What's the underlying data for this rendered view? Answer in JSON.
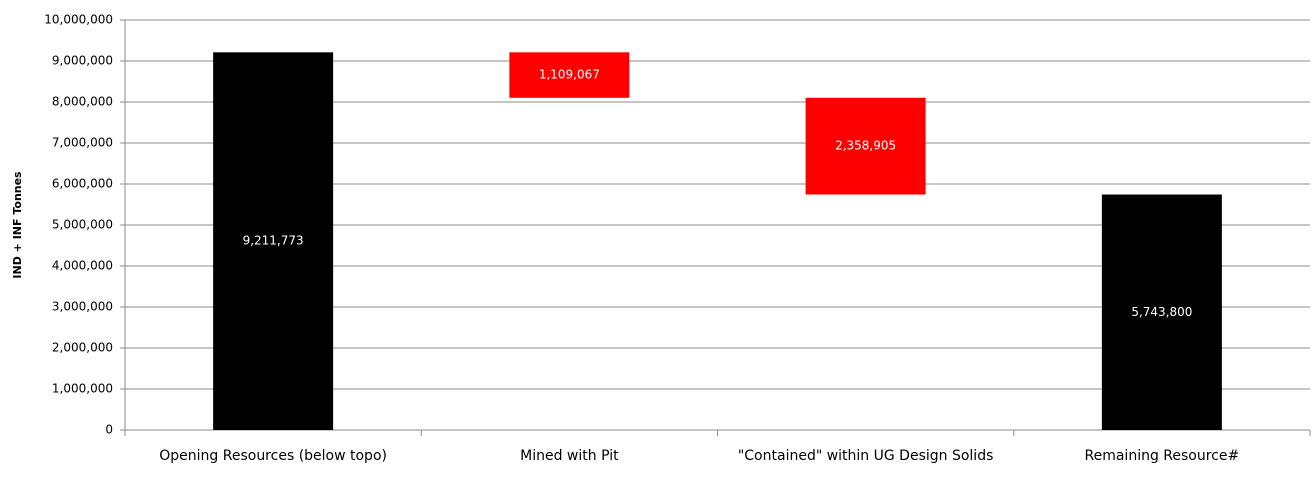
{
  "chart_data": {
    "type": "waterfall",
    "y_label": "IND + INF Tonnes",
    "categories": [
      "Opening Resources (below topo)",
      "Mined with Pit",
      "\"Contained\" within UG Design Solids",
      "Remaining Resource#"
    ],
    "measure": [
      "absolute",
      "relative",
      "relative",
      "total"
    ],
    "values": [
      9211773,
      -1109067,
      -2358905,
      5743800
    ],
    "value_labels": [
      "9,211,773",
      "1,109,067",
      "2,358,905",
      "5,743,800"
    ],
    "colors": [
      "#000000",
      "#ff0000",
      "#ff0000",
      "#000000"
    ],
    "ylim": [
      0,
      10000000
    ],
    "yticks": [
      0,
      {
        "value": 1000000,
        "label": "1,000,000"
      },
      {
        "value": 2000000,
        "label": "2,000,000"
      },
      {
        "value": 3000000,
        "label": "3,000,000"
      },
      {
        "value": 4000000,
        "label": "4,000,000"
      },
      {
        "value": 5000000,
        "label": "5,000,000"
      },
      {
        "value": 6000000,
        "label": "6,000,000"
      },
      {
        "value": 7000000,
        "label": "7,000,000"
      },
      {
        "value": 8000000,
        "label": "8,000,000"
      },
      {
        "value": 9000000,
        "label": "9,000,000"
      },
      {
        "value": 10000000,
        "label": "10,000,000"
      }
    ],
    "grid": true
  }
}
